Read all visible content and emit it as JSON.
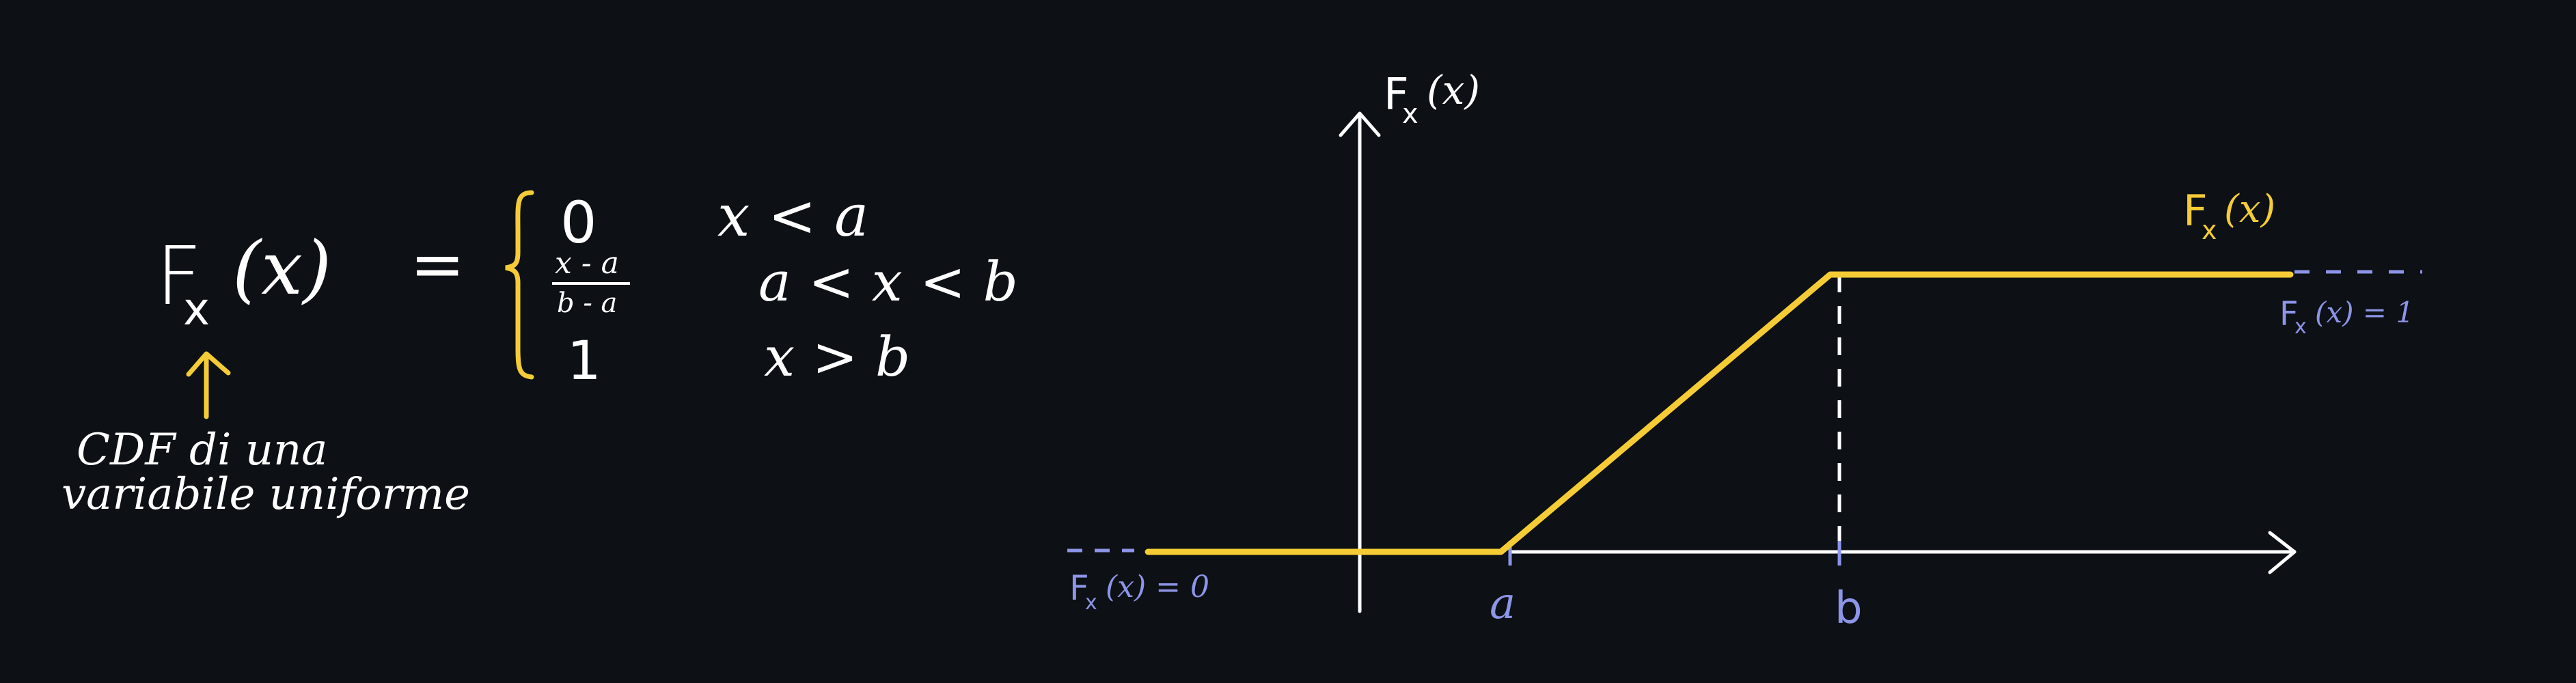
{
  "formula": {
    "lhs_symbol": "F",
    "lhs_subscript": "x",
    "lhs_argument": "(x)",
    "equals": "=",
    "cases": [
      {
        "value": "0",
        "condition": "x < a"
      },
      {
        "value_numerator": "x - a",
        "value_denominator": "b - a",
        "condition": "a < x < b"
      },
      {
        "value": "1",
        "condition": "x > b"
      }
    ]
  },
  "annotation": {
    "line1": "CDF di una",
    "line2": "variabile uniforme"
  },
  "chart_data": {
    "type": "line",
    "title": "",
    "ylabel_symbol": "F",
    "ylabel_subscript": "x",
    "ylabel_argument": "(x)",
    "xlabel": "",
    "series": [
      {
        "name": "F_x(x)",
        "label_symbol": "F",
        "label_subscript": "x",
        "label_argument": "(x)",
        "color": "#f5cc36",
        "x": [
          -1.35,
          0.9,
          3.0,
          2.75
        ],
        "points_desc": "piecewise: 0 for x<a, linear from 0 to 1 on [a,b], 1 for x>b",
        "x_values": [
          -1.35,
          0.9,
          3.0,
          2.75
        ],
        "y_values": [
          0,
          0,
          1,
          1
        ]
      }
    ],
    "x_ticks": [
      "a",
      "b"
    ],
    "a_value": 0.9,
    "b_value": 3.0,
    "xlim": [
      -1.85,
      5.75
    ],
    "ylim": [
      -0.2,
      1.52
    ],
    "left_limit_label": "Fx(x) = 0",
    "right_limit_label": "Fx(x) = 1",
    "left_limit_symbol": "F",
    "left_limit_subscript": "x",
    "left_limit_text": "(x) = 0",
    "right_limit_symbol": "F",
    "right_limit_subscript": "x",
    "right_limit_text": "(x) = 1"
  },
  "colors": {
    "background": "#0d1014",
    "ink": "#ffffff",
    "accent": "#f5cc36",
    "annotation_blue": "#8d95e8"
  }
}
